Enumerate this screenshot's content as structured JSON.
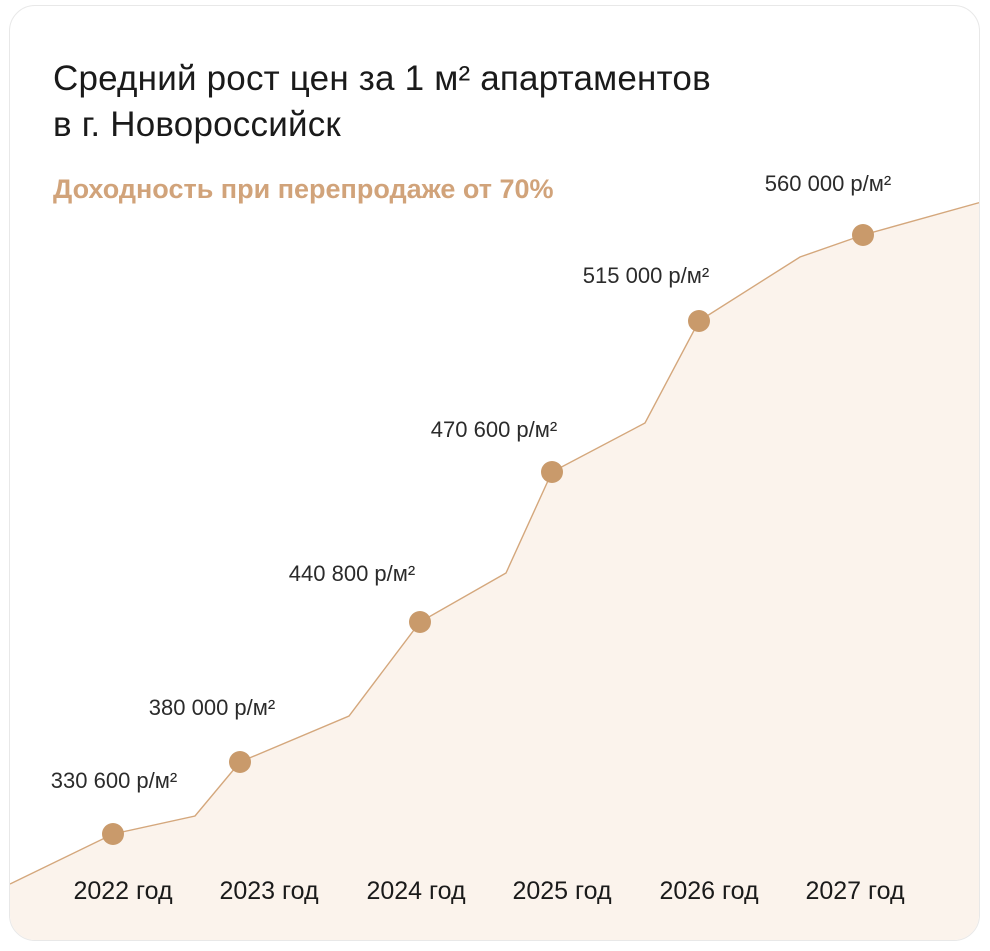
{
  "title_line1": "Средний рост цен за 1 м² апартаментов",
  "title_line2": "в г. Новороссийск",
  "subtitle": "Доходность при перепродаже от 70%",
  "colors": {
    "accent": "#c99a6b",
    "fill": "#fbf3ec",
    "line": "#d4a77c",
    "subtitle": "#d1a37a"
  },
  "chart_data": {
    "type": "area",
    "title": "Средний рост цен за 1 м² апартаментов в г. Новороссийск",
    "subtitle": "Доходность при перепродаже от 70%",
    "categories": [
      "2022 год",
      "2023 год",
      "2024 год",
      "2025 год",
      "2026 год",
      "2027 год"
    ],
    "points": [
      {
        "x": "2022 год",
        "y": 330600,
        "label": "330 600 р/м²"
      },
      {
        "x": "2023 год",
        "y": 380000,
        "label": "380 000 р/м²"
      },
      {
        "x": "2024 год",
        "y": 440800,
        "label": "440 800 р/м²"
      },
      {
        "x": "2025 год",
        "y": 470600,
        "label": "470 600 р/м²"
      },
      {
        "x": "2026 год",
        "y": 515000,
        "label": "515 000 р/м²"
      },
      {
        "x": "2027 год",
        "y": 560000,
        "label": "560 000 р/м²"
      }
    ],
    "unit": "р/м²",
    "grid": false,
    "legend": "none"
  }
}
